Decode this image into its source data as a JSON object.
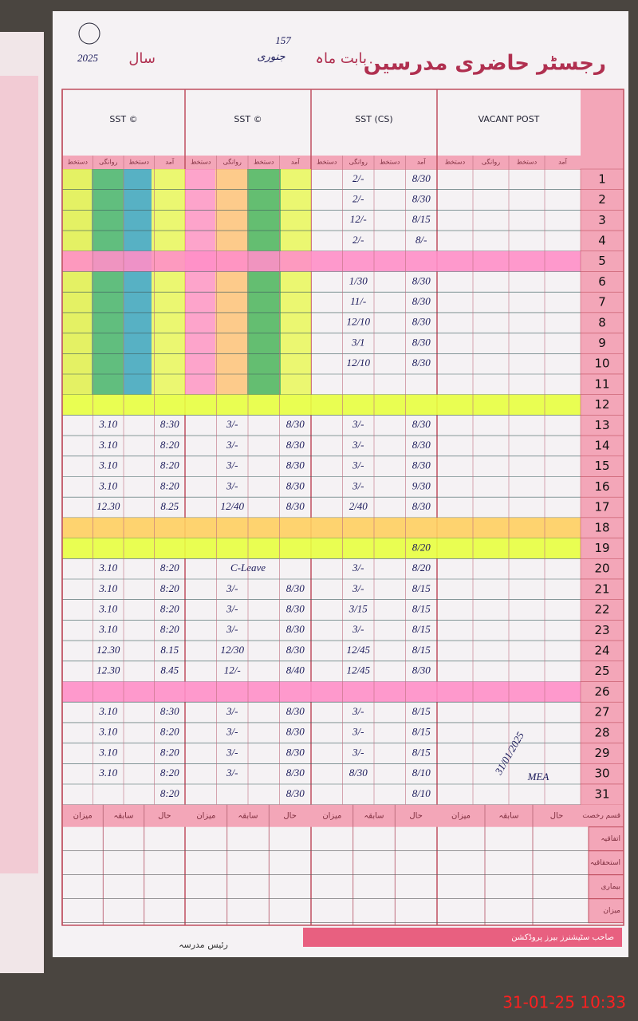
{
  "header": {
    "title": "رجسٹر حاضری مدرسین",
    "month_label": "بابت ماہ",
    "month": "جنوری",
    "year_label": "سال",
    "year": "2025",
    "page_no": "157"
  },
  "teachers": [
    "VACANT POST",
    "SST (CS)",
    "SST ©",
    "SST ©"
  ],
  "col_heads": [
    "آمد",
    "دستخط",
    "روانگی",
    "دستخط"
  ],
  "rows": [
    {
      "day": "1",
      "g2": [
        "8/30",
        "2/-"
      ]
    },
    {
      "day": "2",
      "g2": [
        "8/30",
        "2/-"
      ]
    },
    {
      "day": "3",
      "g2": [
        "8/15",
        "12/-"
      ]
    },
    {
      "day": "4",
      "g2": [
        "8/-",
        "2/-"
      ]
    },
    {
      "day": "5"
    },
    {
      "day": "6",
      "g2": [
        "8/30",
        "1/30"
      ]
    },
    {
      "day": "7",
      "g2": [
        "8/30",
        "11/-"
      ]
    },
    {
      "day": "8",
      "g2": [
        "8/30",
        "12/10"
      ]
    },
    {
      "day": "9",
      "g2": [
        "8/30",
        "3/1"
      ]
    },
    {
      "day": "10",
      "g2": [
        "8/30",
        "12/10"
      ]
    },
    {
      "day": "11"
    },
    {
      "day": "12"
    },
    {
      "day": "13",
      "g2": [
        "8/30",
        "3/-"
      ],
      "g3": [
        "8/30",
        "3/-"
      ],
      "g4": [
        "8:30",
        "3.10"
      ]
    },
    {
      "day": "14",
      "g2": [
        "8/30",
        "3/-"
      ],
      "g3": [
        "8/30",
        "3/-"
      ],
      "g4": [
        "8:20",
        "3.10"
      ]
    },
    {
      "day": "15",
      "g2": [
        "8/30",
        "3/-"
      ],
      "g3": [
        "8/30",
        "3/-"
      ],
      "g4": [
        "8:20",
        "3.10"
      ]
    },
    {
      "day": "16",
      "g2": [
        "9/30",
        "3/-"
      ],
      "g3": [
        "8/30",
        "3/-"
      ],
      "g4": [
        "8:20",
        "3.10"
      ]
    },
    {
      "day": "17",
      "g2": [
        "8/30",
        "2/40"
      ],
      "g3": [
        "8/30",
        "12/40"
      ],
      "g4": [
        "8.25",
        "12.30"
      ]
    },
    {
      "day": "18"
    },
    {
      "day": "19",
      "g2": [
        "8/20"
      ]
    },
    {
      "day": "20",
      "g2": [
        "8/20",
        "3/-"
      ],
      "g3": [
        "C-Leave"
      ],
      "g4": [
        "8:20",
        "3.10"
      ]
    },
    {
      "day": "21",
      "g2": [
        "8/15",
        "3/-"
      ],
      "g3": [
        "8/30",
        "3/-"
      ],
      "g4": [
        "8:20",
        "3.10"
      ]
    },
    {
      "day": "22",
      "g2": [
        "8/15",
        "3/15"
      ],
      "g3": [
        "8/30",
        "3/-"
      ],
      "g4": [
        "8:20",
        "3.10"
      ]
    },
    {
      "day": "23",
      "g2": [
        "8/15",
        "3/-"
      ],
      "g3": [
        "8/30",
        "3/-"
      ],
      "g4": [
        "8:20",
        "3.10"
      ]
    },
    {
      "day": "24",
      "g2": [
        "8/15",
        "12/45"
      ],
      "g3": [
        "8/30",
        "12/30"
      ],
      "g4": [
        "8.15",
        "12.30"
      ]
    },
    {
      "day": "25",
      "g2": [
        "8/30",
        "12/45"
      ],
      "g3": [
        "8/40",
        "12/-"
      ],
      "g4": [
        "8.45",
        "12.30"
      ]
    },
    {
      "day": "26"
    },
    {
      "day": "27",
      "g2": [
        "8/15",
        "3/-"
      ],
      "g3": [
        "8/30",
        "3/-"
      ],
      "g4": [
        "8:30",
        "3.10"
      ]
    },
    {
      "day": "28",
      "g2": [
        "8/15",
        "3/-"
      ],
      "g3": [
        "8/30",
        "3/-"
      ],
      "g4": [
        "8:20",
        "3.10"
      ]
    },
    {
      "day": "29",
      "g2": [
        "8/15",
        "3/-"
      ],
      "g3": [
        "8/30",
        "3/-"
      ],
      "g4": [
        "8:20",
        "3.10"
      ]
    },
    {
      "day": "30",
      "g2": [
        "8/10",
        "8/30"
      ],
      "g3": [
        "8/30",
        "3/-"
      ],
      "g4": [
        "8:20",
        "3.10"
      ]
    },
    {
      "day": "31",
      "g2": [
        "8/10"
      ],
      "g3": [
        "8/30"
      ],
      "g4": [
        "8:20"
      ]
    }
  ],
  "summary_heads": [
    "حال",
    "سابقہ",
    "میزان"
  ],
  "leave_labels": [
    "قسم رخصت",
    "اتفاقیہ",
    "استحقاقیہ",
    "بیماری",
    "میزان"
  ],
  "signature": {
    "date": "31/01/2025",
    "initials": "MEA"
  },
  "footer": {
    "principal": "رئیس مدرسہ",
    "printer": "صاحب سٹیشنرز بیرز پروڈکشن"
  },
  "timestamp": "31-01-25  10:33"
}
